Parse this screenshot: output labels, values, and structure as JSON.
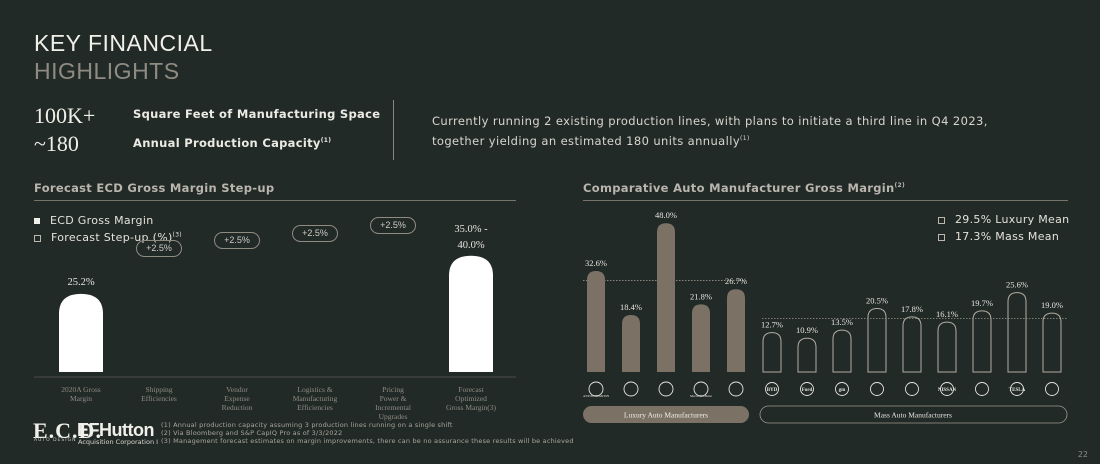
{
  "header": {
    "title_line1": "KEY FINANCIAL",
    "title_line2": "HIGHLIGHTS"
  },
  "stats": [
    {
      "value": "100K+",
      "label": "Square Feet of Manufacturing Space",
      "note": ""
    },
    {
      "value": "~180",
      "label": "Annual Production Capacity",
      "note": "(1)"
    }
  ],
  "description": {
    "text": "Currently running 2 existing production lines, with plans to initiate a third line in Q4 2023, together yielding an estimated 180 units annually",
    "note": "(1)"
  },
  "chart_data": [
    {
      "type": "bar",
      "title": "Forecast ECD Gross Margin Step-up",
      "categories": [
        "2020A Gross Margin",
        "Shipping Efficiencies",
        "Vendor Expense Reduction",
        "Logistics & Manufacturing Efficiencies",
        "Pricing Power & Incremental Upgrades",
        "Forecast Optimized Gross Margin"
      ],
      "category_notes": [
        "",
        "",
        "",
        "",
        "",
        "(3)"
      ],
      "series": [
        {
          "name": "ECD Gross Margin",
          "values": [
            25.2,
            null,
            null,
            null,
            null,
            37.5
          ]
        },
        {
          "name": "Forecast Step-up (%)",
          "values": [
            null,
            2.5,
            2.5,
            2.5,
            2.5,
            null
          ]
        }
      ],
      "data_labels": [
        "25.2%",
        "+2.5%",
        "+2.5%",
        "+2.5%",
        "+2.5%",
        "35.0% - 40.0%"
      ],
      "legend": [
        {
          "label": "ECD Gross Margin",
          "note": "",
          "marker": "filled"
        },
        {
          "label": "Forecast Step-up (%)",
          "note": "(3)",
          "marker": "open"
        }
      ],
      "legend_position": "top-left",
      "ylim": [
        0,
        40
      ]
    },
    {
      "type": "bar",
      "title": "Comparative Auto Manufacturer Gross Margin",
      "title_note": "(2)",
      "groups": [
        {
          "label": "Luxury Auto Manufacturers",
          "categories": [
            "Aston Martin",
            "BMW",
            "Ferrari",
            "Mercedes-Benz",
            "Porsche"
          ],
          "values": [
            32.6,
            18.4,
            48.0,
            21.8,
            26.7
          ],
          "brand_text": [
            "ASTON MARTIN",
            "",
            "",
            "Mercedes-Benz",
            ""
          ]
        },
        {
          "label": "Mass Auto Manufacturers",
          "categories": [
            "BYD",
            "Ford",
            "GM",
            "Honda",
            "Mitsubishi",
            "Nissan",
            "Renault",
            "Tesla",
            "Toyota"
          ],
          "values": [
            12.7,
            10.9,
            13.5,
            20.5,
            17.8,
            16.1,
            19.7,
            25.6,
            19.0
          ],
          "brand_text": [
            "BYD",
            "Ford",
            "gm",
            "",
            "",
            "NISSAN",
            "",
            "TESLA",
            ""
          ]
        }
      ],
      "reference_lines": [
        {
          "label": "29.5% Luxury Mean",
          "value": 29.5
        },
        {
          "label": "17.3% Mass Mean",
          "value": 17.3
        }
      ],
      "legend_position": "top-right",
      "ylim": [
        0,
        50
      ]
    }
  ],
  "footnotes": [
    "(1) Annual production capacity assuming 3 production lines running on a single shift",
    "(2) Via Bloomberg and S&P CapIQ Pro as of 3/3/2022",
    "(3) Management forecast estimates on margin improvements, there can be no assurance these results will be achieved"
  ],
  "logos": {
    "ecd": "E.C.D.",
    "ecd_sub": "AUTO DESIGN",
    "efhutton": "EFHutton",
    "efhutton_sub": "Acquisition Corporation I"
  },
  "page_number": "22",
  "colors": {
    "background": "#222a28",
    "bar_white": "#ffffff",
    "bar_taupe": "#7c7165",
    "text": "#f1efe9",
    "muted": "#8f8b83"
  }
}
